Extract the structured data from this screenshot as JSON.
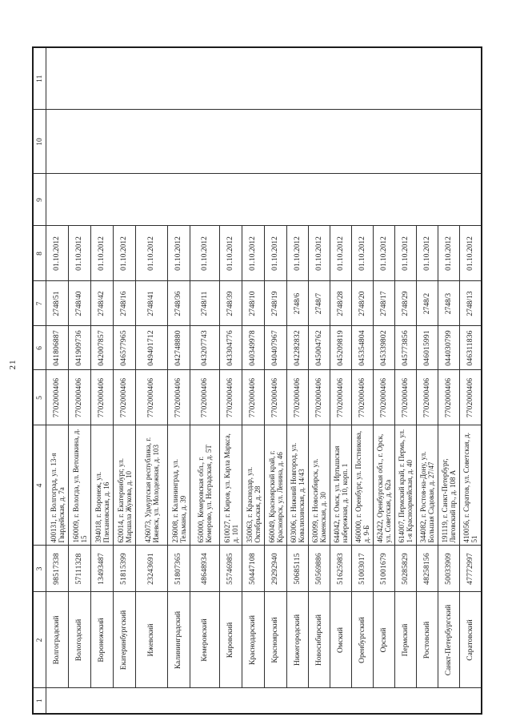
{
  "page": {
    "number": "21"
  },
  "table": {
    "column_headers": [
      "1",
      "2",
      "3",
      "4",
      "5",
      "6",
      "7",
      "8",
      "9",
      "10",
      "11"
    ],
    "column_keys": [
      "num",
      "branch",
      "okpo",
      "address",
      "inn",
      "bik",
      "reg_num",
      "date",
      "col9",
      "col10",
      "col11"
    ],
    "rows": [
      {
        "branch": "Волгоградский",
        "okpo": "98517338",
        "address": "400131, г. Волгоград, ул. 13-я Гвардейская, д. 7а",
        "inn": "7702000406",
        "bik": "041806887",
        "reg_num": "2748/51",
        "date": "01.10.2012"
      },
      {
        "branch": "Вологодский",
        "okpo": "57111328",
        "address": "160009, г. Вологда, ул. Ветошкина, д. 15",
        "inn": "7702000406",
        "bik": "041909736",
        "reg_num": "2748/40",
        "date": "01.10.2012"
      },
      {
        "branch": "Воронежский",
        "okpo": "13493487",
        "address": "394018, г. Воронеж, ул. Плехановская, д. 16",
        "inn": "7702000406",
        "bik": "042007857",
        "reg_num": "2748/42",
        "date": "01.10.2012"
      },
      {
        "branch": "Екатеринбургский",
        "okpo": "51815399",
        "address": "620014, г. Екатеринбург, ул. Маршала Жукова, д. 10",
        "inn": "7702000406",
        "bik": "046577965",
        "reg_num": "2748/16",
        "date": "01.10.2012"
      },
      {
        "branch": "Ижевский",
        "okpo": "23243691",
        "address": "426073, Удмуртская республика, г. Ижевск, ул. Молодежная, д. 103",
        "inn": "7702000406",
        "bik": "049401712",
        "reg_num": "2748/41",
        "date": "01.10.2012"
      },
      {
        "branch": "Калининградский",
        "okpo": "51807365",
        "address": "236008, г. Калининград, ул. Тельмана, д. 39",
        "inn": "7702000406",
        "bik": "042748880",
        "reg_num": "2748/36",
        "date": "01.10.2012"
      },
      {
        "branch": "Кемеровский",
        "okpo": "48648934",
        "address": "650000, Кемеровская обл., г. Кемерово, ул. Ноградская, д. 5Т",
        "inn": "7702000406",
        "bik": "043207743",
        "reg_num": "2748/11",
        "date": "01.10.2012"
      },
      {
        "branch": "Кировский",
        "okpo": "55746985",
        "address": "610027, г. Киров, ул. Карла Маркса, д. 101",
        "inn": "7702000406",
        "bik": "043304776",
        "reg_num": "2748/39",
        "date": "01.10.2012"
      },
      {
        "branch": "Краснодарский",
        "okpo": "50447108",
        "address": "350063, г. Краснодар, ул. Октябрьская, д. 28",
        "inn": "7702000406",
        "bik": "040349978",
        "reg_num": "2748/10",
        "date": "01.10.2012"
      },
      {
        "branch": "Красноярский",
        "okpo": "29292940",
        "address": "660049, Красноярский край, г. Красноярск, ул. Ленина, д. 46",
        "inn": "7702000406",
        "bik": "040407967",
        "reg_num": "2748/19",
        "date": "01.10.2012"
      },
      {
        "branch": "Нижегородский",
        "okpo": "50685115",
        "address": "603006, г. Нижний Новгород, ул. Ковалихинская, д. 14/43",
        "inn": "7702000406",
        "bik": "042282832",
        "reg_num": "2748/6",
        "date": "01.10.2012"
      },
      {
        "branch": "Новосибирский",
        "okpo": "50569886",
        "address": "630099, г. Новосибирск, ул. Каменская, д. 30",
        "inn": "7702000406",
        "bik": "045004762",
        "reg_num": "2748/7",
        "date": "01.10.2012"
      },
      {
        "branch": "Омский",
        "okpo": "51625983",
        "address": "644042, г. Омск, ул. Иртышская набережная, д. 10, корп. 1",
        "inn": "7702000406",
        "bik": "045209819",
        "reg_num": "2748/28",
        "date": "01.10.2012"
      },
      {
        "branch": "Оренбургский",
        "okpo": "51003017",
        "address": "460000, г. Оренбург, ул. Постникова, д. 9-Б",
        "inn": "7702000406",
        "bik": "045354804",
        "reg_num": "2748/20",
        "date": "01.10.2012"
      },
      {
        "branch": "Орский",
        "okpo": "51001679",
        "address": "462422, Оренбургская обл., г. Орск, ул. Советская, д. 62а",
        "inn": "7702000406",
        "bik": "045339802",
        "reg_num": "2748/17",
        "date": "01.10.2012"
      },
      {
        "branch": "Пермский",
        "okpo": "50285829",
        "address": "614007, Пермский край, г. Пермь, ул. 1-я Красноармейская, д. 40",
        "inn": "7702000406",
        "bik": "045773856",
        "reg_num": "2748/29",
        "date": "01.10.2012"
      },
      {
        "branch": "Ростовский",
        "okpo": "48258156",
        "address": "344082, г. Ростов-на-Дону, ул. Большая Садовая, д. 27/47",
        "inn": "7702000406",
        "bik": "046015991",
        "reg_num": "2748/2",
        "date": "01.10.2012"
      },
      {
        "branch": "Санкт-Петербургский",
        "okpo": "50033909",
        "address": "191119, г. Санкт-Петербург, Лиговский пр., д. 108 А",
        "inn": "7702000406",
        "bik": "044030799",
        "reg_num": "2748/3",
        "date": "01.10.2012"
      },
      {
        "branch": "Саратовский",
        "okpo": "47772997",
        "address": "410056, г. Саратов, ул. Советская, д. 51",
        "inn": "7702000406",
        "bik": "046311836",
        "reg_num": "2748/13",
        "date": "01.10.2012"
      }
    ]
  }
}
